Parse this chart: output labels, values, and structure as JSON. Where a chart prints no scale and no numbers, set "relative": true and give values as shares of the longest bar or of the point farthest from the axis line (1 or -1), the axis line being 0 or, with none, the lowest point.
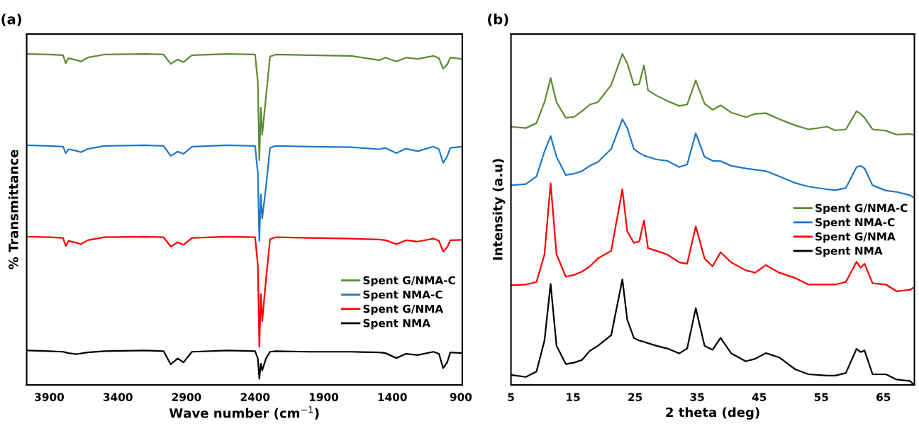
{
  "chart_data": [
    {
      "type": "line",
      "title": "(a)",
      "xlabel": "Wave number (cm$^{−1}$)",
      "ylabel": "% Transmittance",
      "relative": true,
      "legend": "bottom right",
      "grid": false,
      "xlim": [
        4065,
        890
      ],
      "xticks": [
        3900,
        3400,
        2900,
        2400,
        1900,
        1400,
        900
      ],
      "x": [
        4065,
        3900,
        3800,
        3780,
        3760,
        3700,
        3670,
        3620,
        3500,
        3200,
        3067,
        3015,
        2964,
        2922,
        2860,
        2600,
        2400,
        2380,
        2369,
        2358,
        2348,
        2320,
        2291,
        2250,
        2000,
        1700,
        1494,
        1450,
        1370,
        1300,
        1215,
        1100,
        1060,
        1029,
        1000,
        977,
        890
      ],
      "series": [
        {
          "name": "Spent G/NMA-C",
          "color": "#5b8c32",
          "values": [
            1.0,
            0.998,
            0.996,
            0.972,
            0.987,
            0.981,
            0.977,
            0.989,
            0.998,
            1.0,
            0.998,
            0.97,
            0.983,
            0.975,
            0.996,
            1.0,
            0.998,
            0.915,
            0.679,
            0.837,
            0.756,
            0.873,
            0.992,
            0.998,
            0.996,
            0.994,
            0.981,
            0.989,
            0.977,
            0.989,
            0.985,
            0.994,
            0.987,
            0.955,
            0.968,
            0.989,
            0.985
          ]
        },
        {
          "name": "Spent NMA-C",
          "color": "#1f78c8",
          "values": [
            0.724,
            0.722,
            0.72,
            0.7,
            0.712,
            0.707,
            0.703,
            0.713,
            0.722,
            0.724,
            0.722,
            0.692,
            0.705,
            0.698,
            0.72,
            0.724,
            0.722,
            0.64,
            0.435,
            0.575,
            0.503,
            0.6,
            0.716,
            0.722,
            0.72,
            0.718,
            0.712,
            0.716,
            0.7,
            0.714,
            0.706,
            0.72,
            0.712,
            0.671,
            0.69,
            0.716,
            0.72
          ]
        },
        {
          "name": "Spent G/NMA",
          "color": "#ff0000",
          "values": [
            0.448,
            0.446,
            0.444,
            0.42,
            0.435,
            0.429,
            0.425,
            0.437,
            0.446,
            0.448,
            0.446,
            0.418,
            0.431,
            0.423,
            0.444,
            0.448,
            0.446,
            0.363,
            0.115,
            0.274,
            0.193,
            0.321,
            0.44,
            0.446,
            0.444,
            0.442,
            0.439,
            0.437,
            0.425,
            0.437,
            0.433,
            0.442,
            0.435,
            0.403,
            0.416,
            0.437,
            0.438
          ]
        },
        {
          "name": "Spent NMA",
          "color": "#000000",
          "values": [
            0.104,
            0.102,
            0.1,
            0.098,
            0.096,
            0.093,
            0.095,
            0.098,
            0.102,
            0.104,
            0.102,
            0.062,
            0.08,
            0.068,
            0.1,
            0.104,
            0.102,
            0.08,
            0.019,
            0.064,
            0.044,
            0.08,
            0.1,
            0.102,
            0.1,
            0.1,
            0.098,
            0.096,
            0.081,
            0.094,
            0.09,
            0.1,
            0.094,
            0.051,
            0.068,
            0.098,
            0.096
          ]
        }
      ]
    },
    {
      "type": "line",
      "title": "(b)",
      "xlabel": "2 theta (deg)",
      "ylabel": "Intensity (a.u)",
      "relative": true,
      "legend": "right",
      "grid": false,
      "xlim": [
        5,
        70
      ],
      "xticks": [
        5,
        15,
        25,
        35,
        45,
        55,
        65
      ],
      "x": [
        5.03,
        7.4,
        9.11,
        10.4,
        11.39,
        12.34,
        13.84,
        15.13,
        16.42,
        17.71,
        19.0,
        21.15,
        22.95,
        23.73,
        24.8,
        25.66,
        26.43,
        27.08,
        28.45,
        30.17,
        32.11,
        33.39,
        34.77,
        36.19,
        37.48,
        38.77,
        40.49,
        42.85,
        44.35,
        46.07,
        48.22,
        50.8,
        52.95,
        55.96,
        57.24,
        58.96,
        60.68,
        61.33,
        61.97,
        63.26,
        65.41,
        67.13,
        69.28,
        69.8
      ],
      "series": [
        {
          "name": "Spent G/NMA-C",
          "color": "#5b8c32",
          "values": [
            0.78,
            0.776,
            0.791,
            0.854,
            0.927,
            0.854,
            0.807,
            0.809,
            0.827,
            0.847,
            0.854,
            0.906,
            1.0,
            0.972,
            0.906,
            0.909,
            0.965,
            0.89,
            0.874,
            0.858,
            0.843,
            0.847,
            0.92,
            0.85,
            0.831,
            0.845,
            0.823,
            0.809,
            0.819,
            0.821,
            0.803,
            0.784,
            0.772,
            0.78,
            0.769,
            0.772,
            0.827,
            0.819,
            0.807,
            0.772,
            0.768,
            0.756,
            0.758,
            0.756
          ]
        },
        {
          "name": "Spent NMA-C",
          "color": "#1f78c8",
          "values": [
            0.603,
            0.607,
            0.63,
            0.705,
            0.752,
            0.689,
            0.634,
            0.638,
            0.646,
            0.662,
            0.673,
            0.713,
            0.803,
            0.776,
            0.713,
            0.701,
            0.693,
            0.689,
            0.681,
            0.677,
            0.658,
            0.666,
            0.76,
            0.689,
            0.677,
            0.676,
            0.662,
            0.654,
            0.65,
            0.646,
            0.63,
            0.61,
            0.599,
            0.591,
            0.588,
            0.595,
            0.658,
            0.662,
            0.654,
            0.603,
            0.587,
            0.583,
            0.573,
            0.567
          ]
        },
        {
          "name": "Spent G/NMA",
          "color": "#ff0000",
          "values": [
            0.301,
            0.303,
            0.311,
            0.394,
            0.609,
            0.394,
            0.327,
            0.332,
            0.342,
            0.358,
            0.382,
            0.405,
            0.591,
            0.464,
            0.429,
            0.433,
            0.497,
            0.413,
            0.405,
            0.394,
            0.37,
            0.366,
            0.479,
            0.382,
            0.358,
            0.401,
            0.37,
            0.346,
            0.339,
            0.362,
            0.339,
            0.323,
            0.303,
            0.303,
            0.303,
            0.311,
            0.372,
            0.354,
            0.366,
            0.307,
            0.303,
            0.283,
            0.287,
            0.293
          ]
        },
        {
          "name": "Spent NMA",
          "color": "#000000",
          "values": [
            0.03,
            0.024,
            0.04,
            0.134,
            0.305,
            0.118,
            0.063,
            0.067,
            0.075,
            0.103,
            0.118,
            0.15,
            0.319,
            0.197,
            0.142,
            0.134,
            0.13,
            0.126,
            0.118,
            0.11,
            0.095,
            0.11,
            0.232,
            0.118,
            0.106,
            0.142,
            0.095,
            0.071,
            0.079,
            0.096,
            0.083,
            0.047,
            0.032,
            0.028,
            0.028,
            0.036,
            0.109,
            0.099,
            0.104,
            0.032,
            0.032,
            0.016,
            0.012,
            0.002
          ]
        }
      ]
    }
  ]
}
